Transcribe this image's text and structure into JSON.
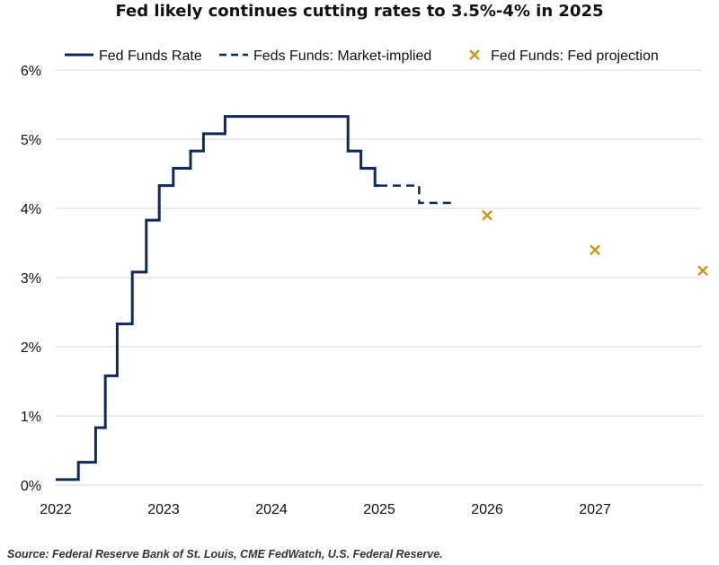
{
  "chart_data": {
    "type": "line",
    "title": "Fed likely continues cutting rates to 3.5%-4% in 2025",
    "xlabel": "",
    "ylabel": "",
    "xlim": [
      2022.0,
      2028.0
    ],
    "ylim": [
      0,
      6
    ],
    "x_ticks": [
      2022,
      2023,
      2024,
      2025,
      2026,
      2027
    ],
    "y_ticks": [
      0,
      1,
      2,
      3,
      4,
      5,
      6
    ],
    "y_tick_labels": [
      "0%",
      "1%",
      "2%",
      "3%",
      "4%",
      "5%",
      "6%"
    ],
    "grid": "horizontal",
    "legend_position": "top",
    "colors": {
      "rate": "#0d2a5a",
      "market": "#0d2a5a",
      "projection": "#c9961f",
      "grid": "#d9d9d9"
    },
    "series": [
      {
        "name": "Fed Funds Rate",
        "style": "solid-step",
        "x": [
          2022.0,
          2022.21,
          2022.37,
          2022.46,
          2022.57,
          2022.71,
          2022.84,
          2022.96,
          2023.09,
          2023.25,
          2023.37,
          2023.57,
          2024.71,
          2024.83,
          2024.96,
          2025.0
        ],
        "y": [
          0.08,
          0.33,
          0.83,
          1.58,
          2.33,
          3.08,
          3.83,
          4.33,
          4.58,
          4.83,
          5.08,
          5.33,
          4.83,
          4.58,
          4.33,
          4.33
        ]
      },
      {
        "name": "Feds Funds: Market-implied",
        "style": "dashed-step",
        "x": [
          2025.0,
          2025.37,
          2025.71
        ],
        "y": [
          4.33,
          4.08,
          4.08
        ]
      },
      {
        "name": "Fed Funds: Fed projection",
        "style": "marker-x",
        "x": [
          2026.0,
          2027.0,
          2028.0
        ],
        "y": [
          3.9,
          3.4,
          3.1
        ]
      }
    ]
  },
  "source": "Source: Federal Reserve Bank of St. Louis, CME FedWatch, U.S. Federal Reserve."
}
